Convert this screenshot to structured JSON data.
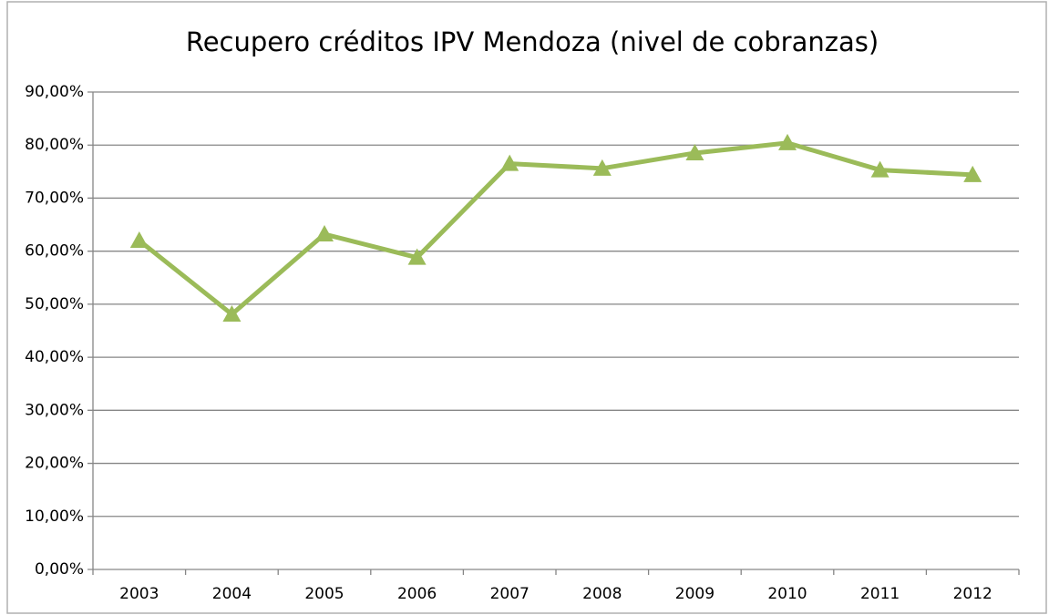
{
  "chart_data": {
    "type": "line",
    "title": "Recupero créditos IPV Mendoza (nivel de cobranzas)",
    "categories": [
      "2003",
      "2004",
      "2005",
      "2006",
      "2007",
      "2008",
      "2009",
      "2010",
      "2011",
      "2012"
    ],
    "values": [
      62.0,
      48.1,
      63.2,
      58.8,
      76.5,
      75.6,
      78.5,
      80.4,
      75.3,
      74.4
    ],
    "color": "#9bbb59",
    "ylim": [
      0,
      90
    ],
    "yticks": [
      {
        "value": 0,
        "label": "0,00%"
      },
      {
        "value": 10,
        "label": "10,00%"
      },
      {
        "value": 20,
        "label": "20,00%"
      },
      {
        "value": 30,
        "label": "30,00%"
      },
      {
        "value": 40,
        "label": "40,00%"
      },
      {
        "value": 50,
        "label": "50,00%"
      },
      {
        "value": 60,
        "label": "60,00%"
      },
      {
        "value": 70,
        "label": "70,00%"
      },
      {
        "value": 80,
        "label": "80,00%"
      },
      {
        "value": 90,
        "label": "90,00%"
      }
    ],
    "grid": true,
    "marker": "triangle"
  }
}
